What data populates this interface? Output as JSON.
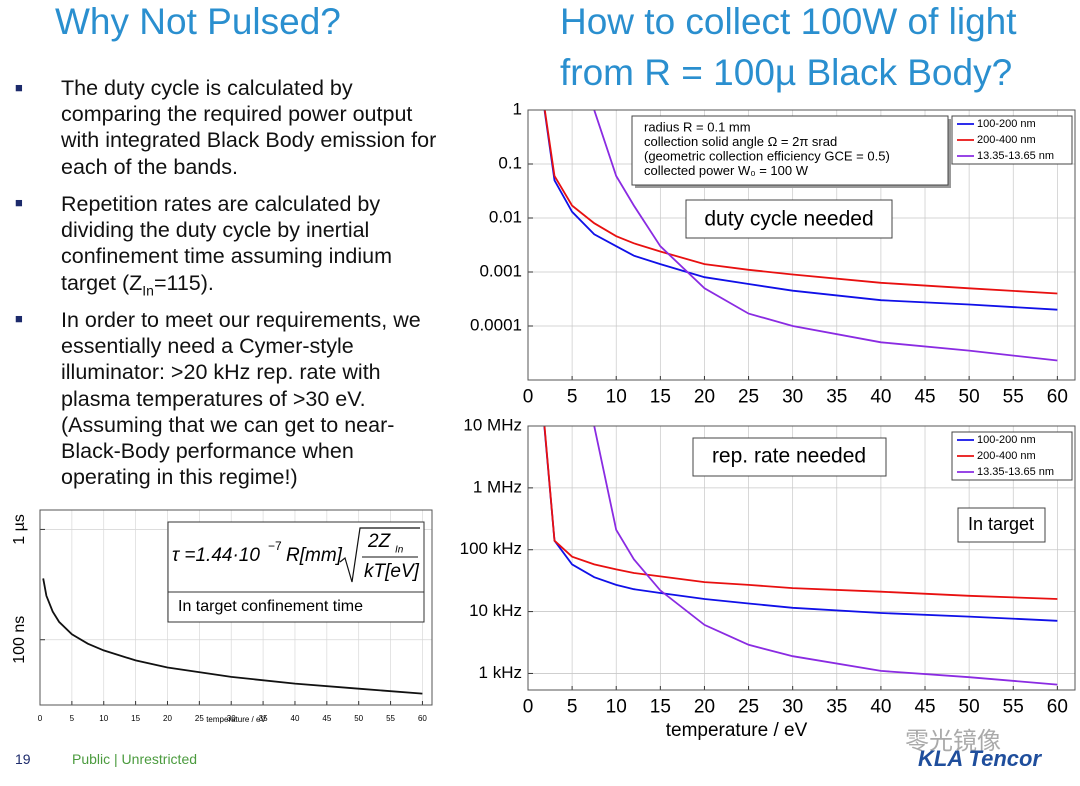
{
  "titles": {
    "left": "Why Not Pulsed?",
    "right_line1": "How to collect 100W of light",
    "right_line2": "from R = 100µ Black Body?"
  },
  "bullets": [
    [
      "The duty cycle is calculated by comparing the required power output with integrated Black Body emission for each of the bands."
    ],
    [
      "Repetition rates are calculated by dividing the duty cycle by inertial confinement time assuming indium target (Z",
      "In",
      "=115)."
    ],
    [
      "In order to meet our requirements, we essentially need a Cymer-style illuminator: >20 kHz rep. rate with plasma temperatures of >30 eV. (Assuming that we can get to near-Black-Body performance when operating in this regime!)"
    ]
  ],
  "footer": {
    "page": "19",
    "label": "Public | Unrestricted",
    "logo": "KLA Tencor",
    "watermark": "零光镜像"
  },
  "chart_data": [
    {
      "type": "line",
      "yscale": "log",
      "xlabel": "temperature / eV",
      "x": [
        0.5,
        1,
        2,
        3,
        5,
        7.5,
        10,
        15,
        20,
        30,
        40,
        50,
        60
      ],
      "series": [
        {
          "color": "#111111",
          "values": [
            3.6e-07,
            2.5e-07,
            1.8e-07,
            1.45e-07,
            1.12e-07,
            9.2e-08,
            8e-08,
            6.5e-08,
            5.6e-08,
            4.6e-08,
            4e-08,
            3.6e-08,
            3.25e-08
          ]
        }
      ],
      "xlim": [
        0,
        61.5
      ],
      "xticks": [
        0,
        5,
        10,
        15,
        20,
        25,
        30,
        35,
        40,
        45,
        50,
        55,
        60
      ],
      "ylim": [
        2.56e-08,
        1.5e-06
      ],
      "yticks": [
        {
          "value": 1e-06,
          "label": "1 µs"
        },
        {
          "value": 1e-07,
          "label": "100 ns"
        }
      ],
      "grid": true,
      "formula": {
        "lhs": "τ =1.44·10",
        "exp": "−7",
        "r": "R[mm]",
        "num": "2Z",
        "num_sub": "In",
        "den": "kT[eV]"
      },
      "caption": "In target confinement time"
    },
    {
      "type": "line",
      "yscale": "log",
      "x": [
        1.8,
        3,
        5,
        7.5,
        10,
        12,
        15,
        20,
        25,
        30,
        40,
        50,
        60
      ],
      "series": [
        {
          "name": "100-200 nm",
          "color": "#1010e8",
          "values": [
            1.2,
            0.05,
            0.013,
            0.005,
            0.003,
            0.002,
            0.0014,
            0.0008,
            0.0006,
            0.00045,
            0.0003,
            0.00025,
            0.0002
          ]
        },
        {
          "name": "200-400 nm",
          "color": "#e81010",
          "values": [
            1.3,
            0.06,
            0.017,
            0.008,
            0.0046,
            0.0034,
            0.0024,
            0.0014,
            0.0011,
            0.0009,
            0.00063,
            0.0005,
            0.0004
          ]
        },
        {
          "name": "13.35-13.65 nm",
          "color": "#8a2be2",
          "values": [
            null,
            null,
            null,
            1.0,
            0.06,
            0.017,
            0.003,
            0.0005,
            0.00017,
            0.0001,
            5e-05,
            3.5e-05,
            2.3e-05
          ]
        }
      ],
      "xlim": [
        0,
        62
      ],
      "xticks": [
        0,
        5,
        10,
        15,
        20,
        25,
        30,
        35,
        40,
        45,
        50,
        55,
        60
      ],
      "ylim": [
        1e-05,
        1
      ],
      "yticks": [
        1,
        0.1,
        0.01,
        0.001,
        0.0001
      ],
      "grid": true,
      "legend": "upper right",
      "params": [
        "radius R = 0.1 mm",
        "collection solid angle Ω = 2π srad",
        "(geometric collection efficiency GCE = 0.5)",
        "collected power W₀ = 100 W"
      ],
      "label": "duty cycle needed"
    },
    {
      "type": "line",
      "yscale": "log",
      "xlabel": "temperature / eV",
      "x": [
        1.8,
        3,
        5,
        7.5,
        10,
        12,
        15,
        20,
        25,
        30,
        40,
        50,
        60
      ],
      "series": [
        {
          "name": "100-200 nm",
          "color": "#1010e8",
          "values": [
            12000000,
            140000,
            58000,
            36000,
            27000,
            23000,
            20000,
            16000,
            13500,
            11500,
            9500,
            8300,
            7100
          ]
        },
        {
          "name": "200-400 nm",
          "color": "#e81010",
          "values": [
            13000000,
            140000,
            77000,
            58000,
            48000,
            42000,
            37000,
            30000,
            27000,
            24000,
            21000,
            18000,
            16000
          ]
        },
        {
          "name": "13.35-13.65 nm",
          "color": "#8a2be2",
          "values": [
            null,
            null,
            null,
            10000000,
            210000,
            70000,
            22000,
            6100,
            2900,
            1900,
            1100,
            870,
            660
          ]
        }
      ],
      "xlim": [
        0,
        62
      ],
      "xticks": [
        0,
        5,
        10,
        15,
        20,
        25,
        30,
        35,
        40,
        45,
        50,
        55,
        60
      ],
      "ylim": [
        540,
        10000000
      ],
      "yticks": [
        {
          "value": 10000000,
          "label": "10 MHz"
        },
        {
          "value": 1000000,
          "label": "1 MHz"
        },
        {
          "value": 100000,
          "label": "100 kHz"
        },
        {
          "value": 10000,
          "label": "10 kHz"
        },
        {
          "value": 1000,
          "label": "1 kHz"
        }
      ],
      "grid": true,
      "legend": "upper right",
      "label": "rep. rate needed",
      "note": "In target"
    }
  ]
}
